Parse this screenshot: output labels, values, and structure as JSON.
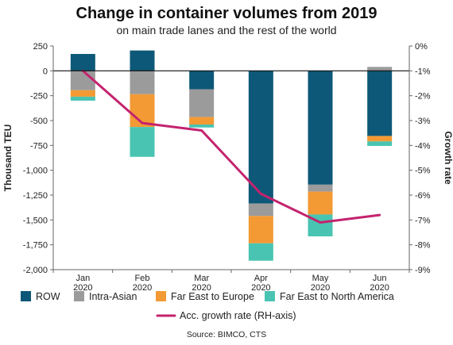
{
  "chart_data": {
    "type": "bar",
    "stacked": true,
    "title": "Change in container volumes from 2019",
    "subtitle": "on main trade lanes and the rest of the world",
    "ylabel": "Thousand TEU",
    "y2label": "Growth rate",
    "ylim": [
      -2000,
      250
    ],
    "y2lim": [
      -9,
      0
    ],
    "yticks": [
      "250",
      "0",
      "-250",
      "-500",
      "-750",
      "-1,000",
      "-1,250",
      "-1,500",
      "-1,750",
      "-2,000"
    ],
    "y2ticks": [
      "0%",
      "-1%",
      "-2%",
      "-3%",
      "-4%",
      "-5%",
      "-6%",
      "-7%",
      "-8%",
      "-9%"
    ],
    "categories": [
      [
        "Jan",
        "2020"
      ],
      [
        "Feb",
        "2020"
      ],
      [
        "Mar",
        "2020"
      ],
      [
        "Apr",
        "2020"
      ],
      [
        "May",
        "2020"
      ],
      [
        "Jun",
        "2020"
      ]
    ],
    "series": [
      {
        "name": "ROW",
        "color": "#0d5878",
        "values": [
          170,
          205,
          -185,
          -1335,
          -1145,
          -655
        ]
      },
      {
        "name": "Intra-Asian",
        "color": "#9b9b9b",
        "values": [
          -195,
          -235,
          -280,
          -125,
          -70,
          40
        ]
      },
      {
        "name": "Far East to Europe",
        "color": "#f39a34",
        "values": [
          -65,
          -330,
          -75,
          -275,
          -230,
          -55
        ]
      },
      {
        "name": "Far East to North America",
        "color": "#49c4b2",
        "values": [
          -40,
          -300,
          -30,
          -175,
          -220,
          -45
        ]
      }
    ],
    "line_series": {
      "name": "Acc. growth rate (RH-axis)",
      "color": "#c4236e",
      "axis": "right",
      "values": [
        -1.0,
        -3.1,
        -3.4,
        -5.95,
        -7.1,
        -6.8
      ]
    },
    "legend_position": "bottom",
    "grid": false
  },
  "source": "Source: BIMCO, CTS"
}
